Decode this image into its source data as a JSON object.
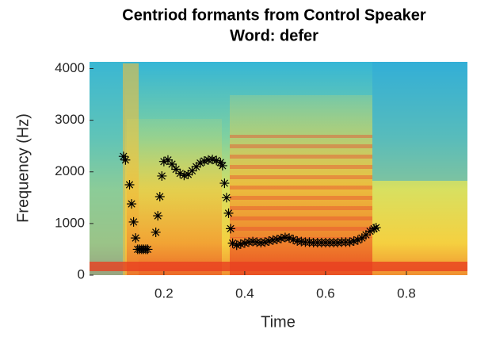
{
  "chart_data": {
    "type": "scatter",
    "title": "Centriod formants from Control Speaker",
    "subtitle": "Word: defer",
    "x_label": "Time",
    "y_label": "Frequency (Hz)",
    "xlim": [
      0.016,
      0.951
    ],
    "ylim": [
      0,
      4130
    ],
    "xticks": [
      0.2,
      0.4,
      0.6,
      0.8
    ],
    "yticks": [
      0,
      1000,
      2000,
      3000,
      4000
    ],
    "grid": false,
    "series": [
      {
        "color": "#000000",
        "x": [
          0.1,
          0.105,
          0.115,
          0.12,
          0.125,
          0.13,
          0.135,
          0.14,
          0.145,
          0.15,
          0.155,
          0.16,
          0.18,
          0.185,
          0.19,
          0.195,
          0.2,
          0.21,
          0.22,
          0.23,
          0.24,
          0.25,
          0.26,
          0.27,
          0.28,
          0.29,
          0.3,
          0.31,
          0.32,
          0.33,
          0.34,
          0.345,
          0.35,
          0.355,
          0.36,
          0.365,
          0.37,
          0.38,
          0.39,
          0.4,
          0.41,
          0.42,
          0.43,
          0.44,
          0.45,
          0.46,
          0.47,
          0.48,
          0.49,
          0.5,
          0.51,
          0.52,
          0.53,
          0.54,
          0.55,
          0.56,
          0.57,
          0.58,
          0.59,
          0.6,
          0.61,
          0.62,
          0.63,
          0.64,
          0.65,
          0.66,
          0.67,
          0.68,
          0.69,
          0.7,
          0.71,
          0.72,
          0.725
        ],
        "values": [
          2300,
          2230,
          1750,
          1380,
          1030,
          720,
          500,
          500,
          500,
          500,
          500,
          500,
          830,
          1150,
          1520,
          1920,
          2200,
          2230,
          2150,
          2050,
          1970,
          1930,
          1950,
          2020,
          2100,
          2170,
          2210,
          2230,
          2240,
          2220,
          2180,
          2120,
          1780,
          1500,
          1200,
          900,
          620,
          580,
          600,
          620,
          640,
          650,
          640,
          630,
          640,
          660,
          680,
          690,
          710,
          730,
          720,
          690,
          660,
          650,
          640,
          640,
          630,
          630,
          630,
          630,
          630,
          630,
          630,
          640,
          640,
          640,
          660,
          680,
          720,
          780,
          850,
          900,
          920
        ]
      }
    ]
  }
}
